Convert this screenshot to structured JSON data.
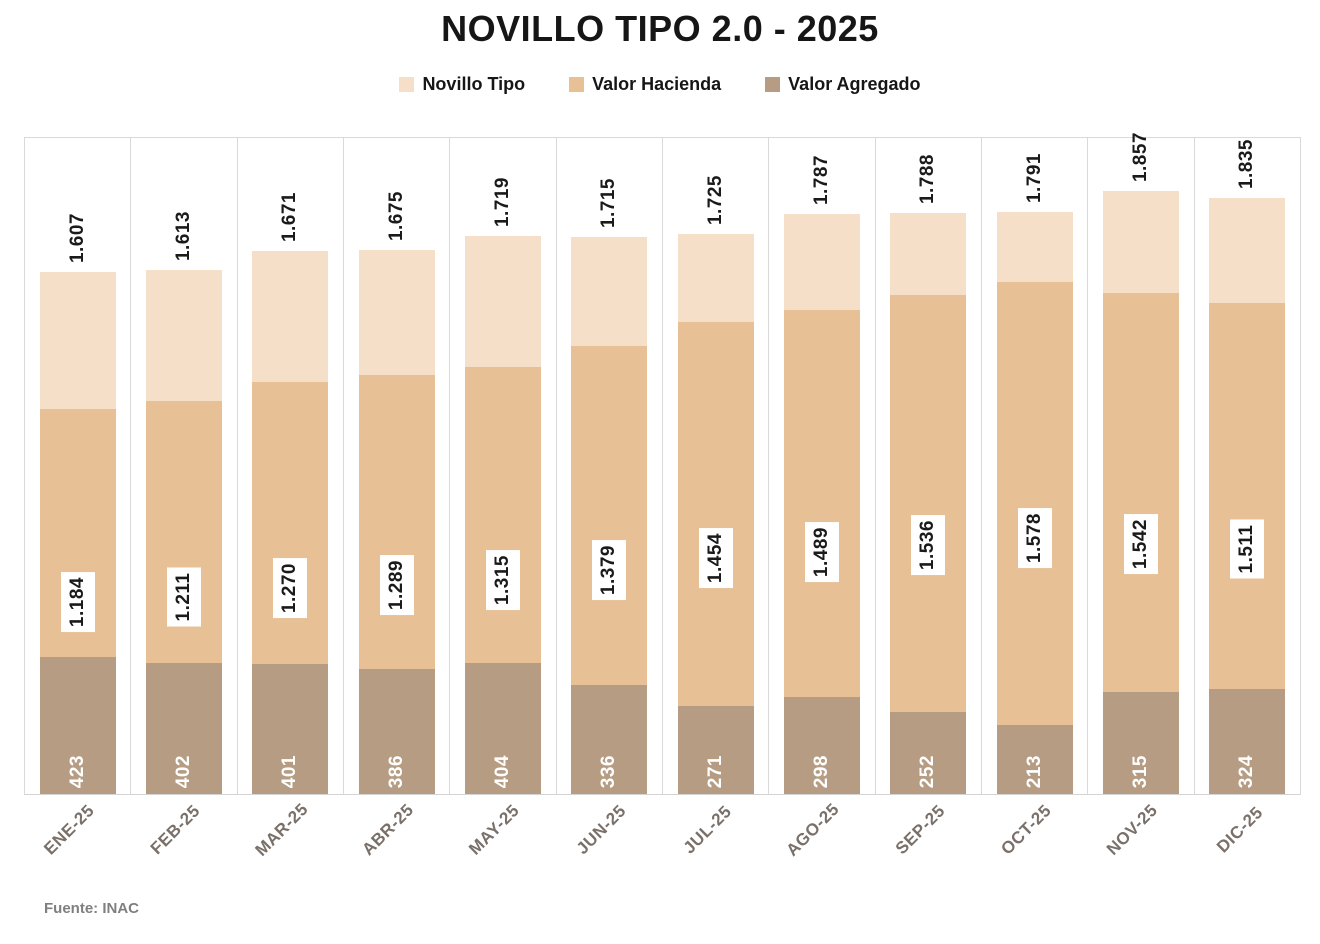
{
  "header": {
    "title": "NOVILLO TIPO 2.0 - 2025"
  },
  "legend": [
    {
      "label": "Novillo Tipo",
      "color": "#f5dfc8"
    },
    {
      "label": "Valor Hacienda",
      "color": "#e7c096"
    },
    {
      "label": "Valor Agregado",
      "color": "#b59c82"
    }
  ],
  "footer": {
    "source": "Fuente: INAC"
  },
  "chart_data": {
    "type": "bar",
    "variant": "overlapped-columns",
    "title": "NOVILLO TIPO 2.0 - 2025",
    "categories": [
      "ENE-25",
      "FEB-25",
      "MAR-25",
      "ABR-25",
      "MAY-25",
      "JUN-25",
      "JUL-25",
      "AGO-25",
      "SEP-25",
      "OCT-25",
      "NOV-25",
      "DIC-25"
    ],
    "series": [
      {
        "name": "Novillo Tipo",
        "color": "#f5dfc8",
        "values": [
          1607,
          1613,
          1671,
          1675,
          1719,
          1715,
          1725,
          1787,
          1788,
          1791,
          1857,
          1835
        ],
        "labels": [
          "1.607",
          "1.613",
          "1.671",
          "1.675",
          "1.719",
          "1.715",
          "1.725",
          "1.787",
          "1.788",
          "1.791",
          "1.857",
          "1.835"
        ]
      },
      {
        "name": "Valor Hacienda",
        "color": "#e7c096",
        "values": [
          1184,
          1211,
          1270,
          1289,
          1315,
          1379,
          1454,
          1489,
          1536,
          1578,
          1542,
          1511
        ],
        "labels": [
          "1.184",
          "1.211",
          "1.270",
          "1.289",
          "1.315",
          "1.379",
          "1.454",
          "1.489",
          "1.536",
          "1.578",
          "1.542",
          "1.511"
        ]
      },
      {
        "name": "Valor Agregado",
        "color": "#b59c82",
        "values": [
          423,
          402,
          401,
          386,
          404,
          336,
          271,
          298,
          252,
          213,
          315,
          324
        ],
        "labels": [
          "423",
          "402",
          "401",
          "386",
          "404",
          "336",
          "271",
          "298",
          "252",
          "213",
          "315",
          "324"
        ]
      }
    ],
    "ylim": [
      0,
      2020
    ],
    "grid": "vertical-category-lines-only",
    "legend_position": "top",
    "source": "Fuente: INAC"
  }
}
